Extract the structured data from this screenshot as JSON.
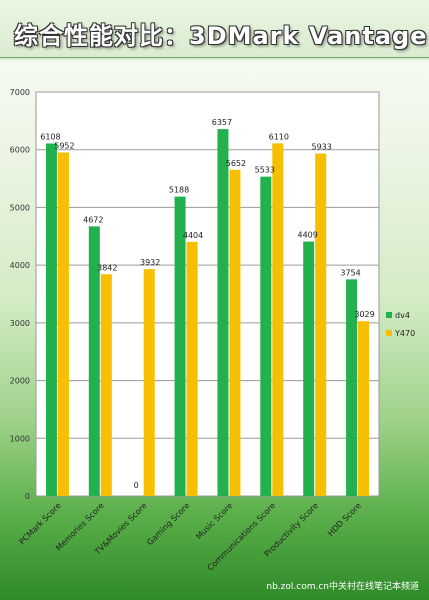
{
  "header": {
    "title": "综合性能对比：3DMark Vantage"
  },
  "watermark": "nb.zol.com.cn中关村在线笔记本频道",
  "colors": {
    "dv4": "#22b14c",
    "Y470": "#f6c000"
  },
  "chart_data": {
    "type": "bar",
    "title": "",
    "xlabel": "",
    "ylabel": "",
    "categories": [
      "PCMark Score",
      "Memories Score",
      "TV&Movies Score",
      "Gaming Score",
      "Music Score",
      "Communications Score",
      "Productivity Score",
      "HDD Score"
    ],
    "series": [
      {
        "name": "dv4",
        "values": [
          6108,
          4672,
          0,
          5188,
          6357,
          5533,
          4409,
          3754
        ]
      },
      {
        "name": "Y470",
        "values": [
          5952,
          3842,
          3932,
          4404,
          5652,
          6110,
          5933,
          3029
        ]
      }
    ],
    "value_labels": [
      [
        "6108",
        "4672",
        "0",
        "5188",
        "6357",
        "5533",
        "4409",
        "3754"
      ],
      [
        "5952",
        "3842",
        "3932",
        "4404",
        "5652",
        "6110",
        "5933",
        "3029"
      ]
    ],
    "ylim": [
      0,
      7000
    ],
    "yticks": [
      0,
      1000,
      2000,
      3000,
      4000,
      5000,
      6000,
      7000
    ],
    "grid": true,
    "legend": "right"
  }
}
